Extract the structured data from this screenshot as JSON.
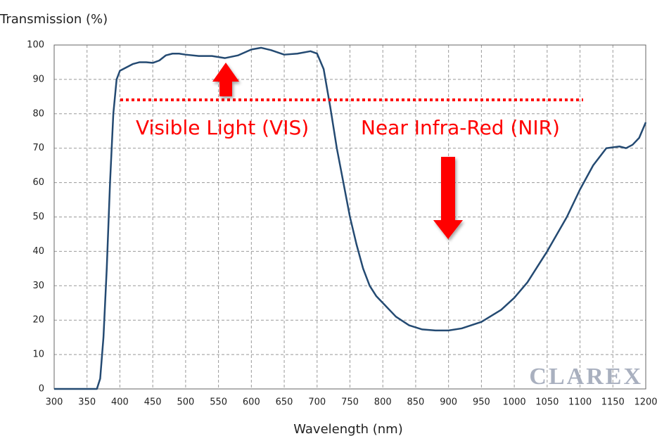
{
  "chart_data": {
    "type": "line",
    "y_title": "Transmission (%)",
    "x_title": "Wavelength (nm)",
    "annotations": [
      "Visible Light (VIS)",
      "Near Infra-Red (NIR)"
    ],
    "watermark": "CLAREX",
    "color": "#244a72",
    "x": [
      300,
      350,
      365,
      370,
      375,
      380,
      385,
      390,
      395,
      400,
      410,
      420,
      430,
      440,
      450,
      460,
      470,
      480,
      490,
      500,
      520,
      540,
      560,
      580,
      600,
      615,
      630,
      650,
      670,
      690,
      700,
      710,
      720,
      730,
      740,
      750,
      760,
      770,
      780,
      790,
      800,
      820,
      840,
      860,
      880,
      900,
      920,
      950,
      980,
      1000,
      1020,
      1050,
      1080,
      1100,
      1120,
      1140,
      1160,
      1170,
      1180,
      1190,
      1200
    ],
    "values": [
      0,
      0,
      0,
      3,
      15,
      35,
      60,
      80,
      90,
      92.5,
      93.5,
      94.5,
      95,
      95,
      94.8,
      95.5,
      97,
      97.5,
      97.5,
      97.2,
      96.8,
      96.8,
      96.2,
      97,
      98.7,
      99.2,
      98.5,
      97.2,
      97.5,
      98.2,
      97.5,
      93,
      82,
      70,
      60,
      50,
      42,
      35,
      30,
      27,
      25,
      21,
      18.5,
      17.3,
      17,
      17,
      17.6,
      19.5,
      23,
      26.5,
      31,
      40,
      50,
      58,
      65,
      70,
      70.5,
      70,
      71,
      73,
      77.5
    ],
    "xlim": [
      300,
      1200
    ],
    "ylim": [
      0,
      100
    ],
    "xticks": [
      300,
      350,
      400,
      450,
      500,
      550,
      600,
      650,
      700,
      750,
      800,
      850,
      900,
      950,
      1000,
      1050,
      1100,
      1150,
      1200
    ],
    "yticks": [
      0,
      10,
      20,
      30,
      40,
      50,
      60,
      70,
      80,
      90,
      100
    ],
    "grid": true
  }
}
